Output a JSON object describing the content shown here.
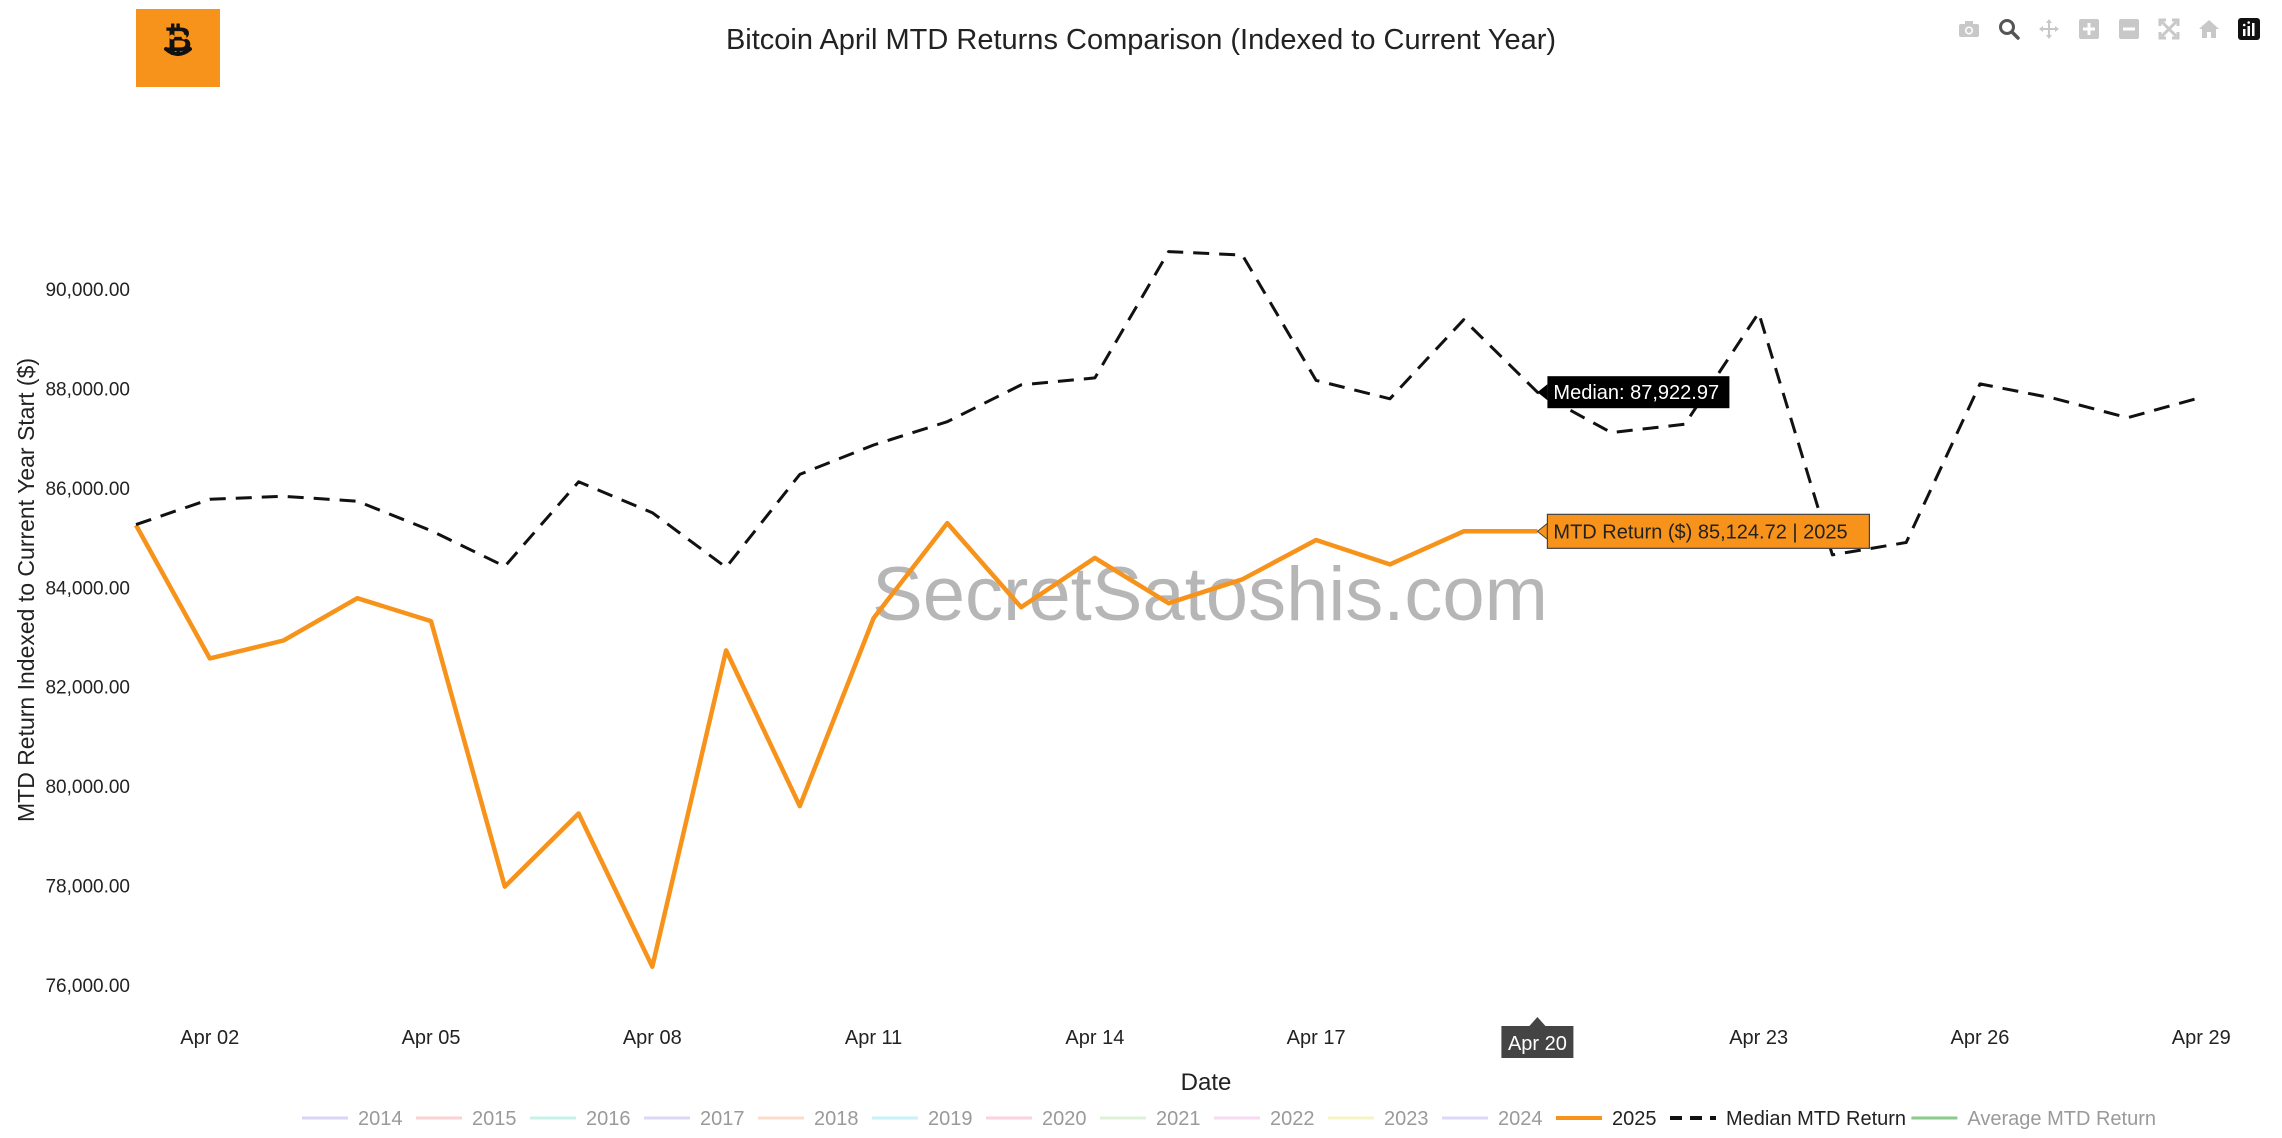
{
  "title": "Bitcoin April MTD Returns Comparison (Indexed to Current Year)",
  "watermark": "SecretSatoshis.com",
  "logo": {
    "icon": "bitcoin-logo-icon",
    "color": "#F7931A"
  },
  "modebar": {
    "icons": [
      "camera-icon",
      "zoom-icon",
      "pan-icon",
      "zoom-in-icon",
      "zoom-out-icon",
      "autoscale-icon",
      "reset-axes-icon",
      "plotly-logo-icon"
    ]
  },
  "chart_data": {
    "type": "line",
    "title": "Bitcoin April MTD Returns Comparison (Indexed to Current Year)",
    "xlabel": "Date",
    "ylabel": "MTD Return Indexed to Current Year Start ($)",
    "x_days": [
      1,
      2,
      3,
      4,
      5,
      6,
      7,
      8,
      9,
      10,
      11,
      12,
      13,
      14,
      15,
      16,
      17,
      18,
      19,
      20,
      21,
      22,
      23,
      24,
      25,
      26,
      27,
      28,
      29,
      30
    ],
    "x_tick_labels": [
      "Apr 02",
      "Apr 05",
      "Apr 08",
      "Apr 11",
      "Apr 14",
      "Apr 17",
      "Apr 20",
      "Apr 23",
      "Apr 26",
      "Apr 29"
    ],
    "x_tick_days": [
      2,
      5,
      8,
      11,
      14,
      17,
      20,
      23,
      26,
      29
    ],
    "xlim": [
      1,
      30
    ],
    "ylim": [
      75700,
      94000
    ],
    "y_ticks": [
      76000,
      78000,
      80000,
      82000,
      84000,
      86000,
      88000,
      90000
    ],
    "y_tick_labels": [
      "76,000.00",
      "78,000.00",
      "80,000.00",
      "82,000.00",
      "84,000.00",
      "86,000.00",
      "88,000.00",
      "90,000.00"
    ],
    "grid": false,
    "legend_position": "bottom",
    "series": [
      {
        "name": "2014",
        "color": "#d9d6f5",
        "dash": "solid",
        "values": []
      },
      {
        "name": "2015",
        "color": "#f9d2d2",
        "dash": "solid",
        "values": []
      },
      {
        "name": "2016",
        "color": "#c8f2e8",
        "dash": "solid",
        "values": []
      },
      {
        "name": "2017",
        "color": "#dcd8f4",
        "dash": "solid",
        "values": []
      },
      {
        "name": "2018",
        "color": "#fbdccc",
        "dash": "solid",
        "values": []
      },
      {
        "name": "2019",
        "color": "#c9f1f7",
        "dash": "solid",
        "values": []
      },
      {
        "name": "2020",
        "color": "#fad2e0",
        "dash": "solid",
        "values": []
      },
      {
        "name": "2021",
        "color": "#def0da",
        "dash": "solid",
        "values": []
      },
      {
        "name": "2022",
        "color": "#f5daf2",
        "dash": "solid",
        "values": []
      },
      {
        "name": "2023",
        "color": "#f6f3c5",
        "dash": "solid",
        "values": []
      },
      {
        "name": "2024",
        "color": "#dcd8f8",
        "dash": "solid",
        "values": []
      },
      {
        "name": "2025",
        "color": "#F7931A",
        "dash": "solid",
        "values": [
          85250,
          82570,
          82930,
          83780,
          83320,
          77980,
          79450,
          76370,
          82730,
          79600,
          83380,
          85290,
          83600,
          84590,
          83680,
          84160,
          84950,
          84460,
          85124.72,
          85124.72
        ]
      },
      {
        "name": "Median MTD Return",
        "color": "#111111",
        "dash": "dash",
        "values": [
          85260,
          85770,
          85830,
          85730,
          85140,
          84420,
          86120,
          85500,
          84400,
          86270,
          86860,
          87330,
          88070,
          88210,
          90750,
          90680,
          88160,
          87790,
          89380,
          87922.97,
          87110,
          87280,
          89520,
          84650,
          84900,
          88090,
          87800,
          87410,
          87820
        ]
      },
      {
        "name": "Average MTD Return",
        "color": "#8cc98c",
        "dash": "solid",
        "values": []
      }
    ],
    "hover": {
      "x_label": "Apr 20",
      "median_label": "Median: 87,922.97",
      "series_label": "MTD Return ($) 85,124.72 | 2025"
    }
  }
}
